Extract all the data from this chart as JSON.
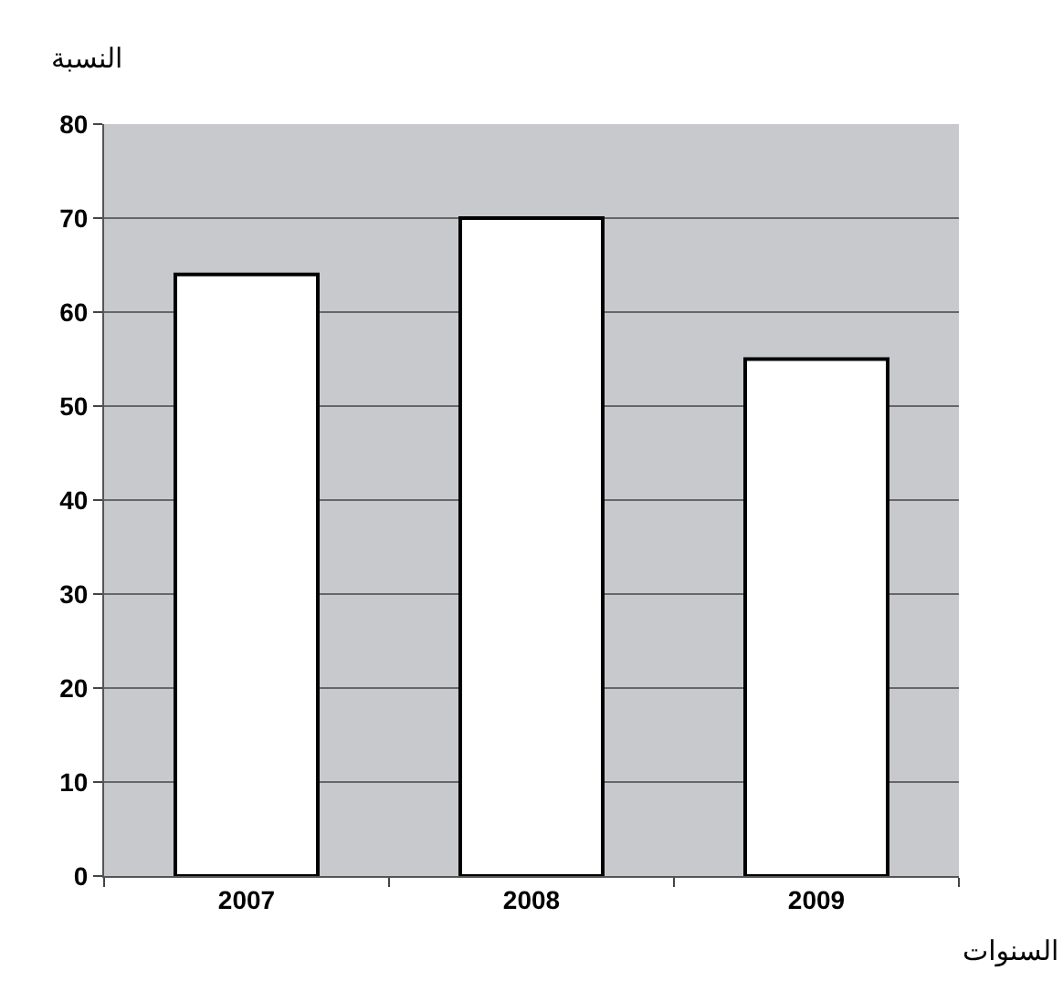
{
  "chart_data": {
    "type": "bar",
    "ylabel": "النسبة",
    "xlabel": "السنوات",
    "categories": [
      "2007",
      "2008",
      "2009"
    ],
    "values": [
      64,
      70,
      55
    ],
    "color": "#ffffff",
    "ylim": [
      0,
      80
    ],
    "yticks": [
      0,
      10,
      20,
      30,
      40,
      50,
      60,
      70,
      80
    ],
    "grid": "y"
  }
}
